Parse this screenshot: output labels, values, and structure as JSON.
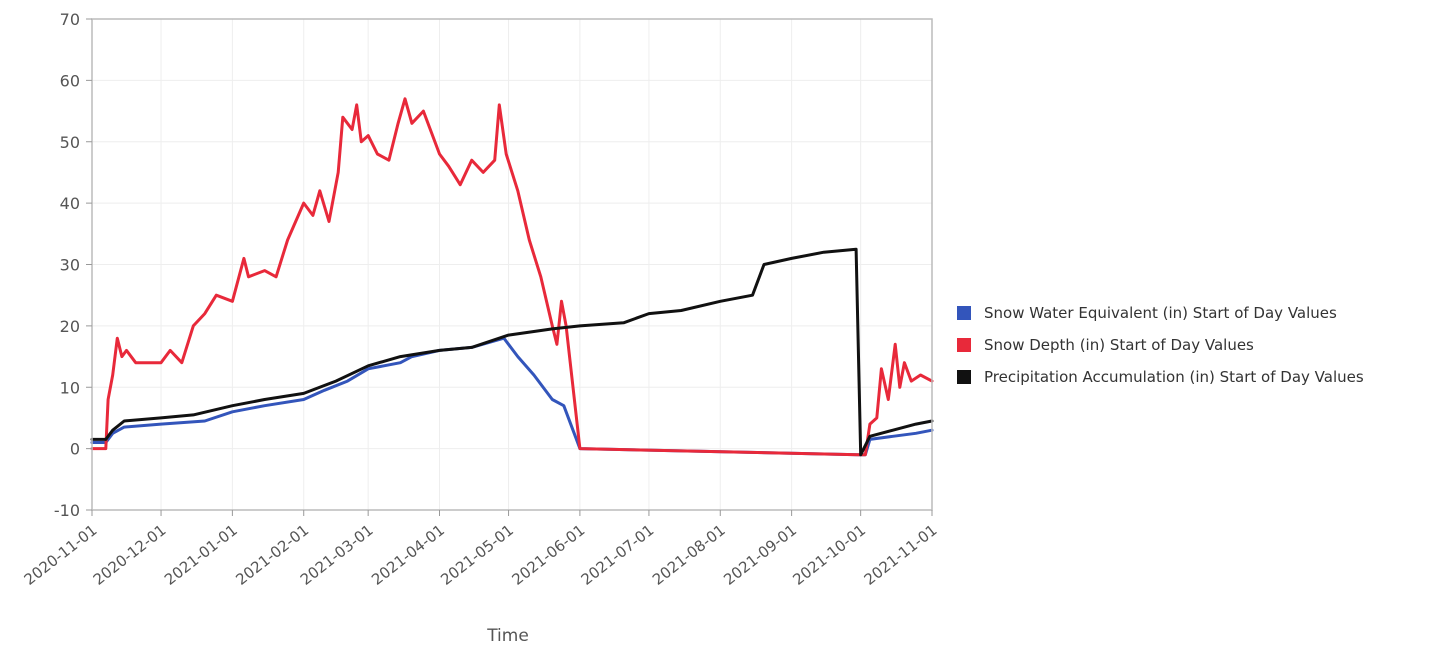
{
  "chart_data": {
    "type": "line",
    "title": "",
    "xlabel": "Time",
    "ylabel": "",
    "ylim": [
      -10,
      70
    ],
    "y_ticks": [
      "70",
      "60",
      "50",
      "40",
      "30",
      "20",
      "10",
      "0",
      "-10"
    ],
    "x_range": [
      "2020-11-01",
      "2021-11-01"
    ],
    "x_ticks": [
      "2020-11-01",
      "2020-12-01",
      "2021-01-01",
      "2021-02-01",
      "2021-03-01",
      "2021-04-01",
      "2021-05-01",
      "2021-06-01",
      "2021-07-01",
      "2021-08-01",
      "2021-09-01",
      "2021-10-01",
      "2021-11-01"
    ],
    "grid": true,
    "legend_position": "right",
    "series": [
      {
        "name": "Snow Water Equivalent (in) Start of Day Values",
        "color": "#3355bb",
        "points": [
          [
            "2020-11-01",
            1
          ],
          [
            "2020-11-07",
            1
          ],
          [
            "2020-11-10",
            2.5
          ],
          [
            "2020-11-15",
            3.5
          ],
          [
            "2020-12-01",
            4
          ],
          [
            "2020-12-20",
            4.5
          ],
          [
            "2021-01-01",
            6
          ],
          [
            "2021-01-15",
            7
          ],
          [
            "2021-02-01",
            8
          ],
          [
            "2021-02-10",
            9.5
          ],
          [
            "2021-02-20",
            11
          ],
          [
            "2021-03-01",
            13
          ],
          [
            "2021-03-15",
            14
          ],
          [
            "2021-03-20",
            15
          ],
          [
            "2021-04-01",
            16
          ],
          [
            "2021-04-15",
            16.5
          ],
          [
            "2021-04-29",
            18
          ],
          [
            "2021-05-05",
            15
          ],
          [
            "2021-05-12",
            12
          ],
          [
            "2021-05-20",
            8
          ],
          [
            "2021-05-25",
            7
          ],
          [
            "2021-05-29",
            3
          ],
          [
            "2021-06-01",
            0
          ],
          [
            "2021-09-30",
            -1
          ],
          [
            "2021-10-03",
            -1
          ],
          [
            "2021-10-05",
            1.5
          ],
          [
            "2021-10-15",
            2
          ],
          [
            "2021-10-25",
            2.5
          ],
          [
            "2021-11-01",
            3
          ]
        ]
      },
      {
        "name": "Snow Depth (in) Start of Day Values",
        "color": "#e8293a",
        "points": [
          [
            "2020-11-01",
            0
          ],
          [
            "2020-11-07",
            0
          ],
          [
            "2020-11-08",
            8
          ],
          [
            "2020-11-10",
            12
          ],
          [
            "2020-11-12",
            18
          ],
          [
            "2020-11-14",
            15
          ],
          [
            "2020-11-16",
            16
          ],
          [
            "2020-11-20",
            14
          ],
          [
            "2020-12-01",
            14
          ],
          [
            "2020-12-05",
            16
          ],
          [
            "2020-12-10",
            14
          ],
          [
            "2020-12-15",
            20
          ],
          [
            "2020-12-20",
            22
          ],
          [
            "2020-12-25",
            25
          ],
          [
            "2021-01-01",
            24
          ],
          [
            "2021-01-06",
            31
          ],
          [
            "2021-01-08",
            28
          ],
          [
            "2021-01-15",
            29
          ],
          [
            "2021-01-20",
            28
          ],
          [
            "2021-01-25",
            34
          ],
          [
            "2021-02-01",
            40
          ],
          [
            "2021-02-05",
            38
          ],
          [
            "2021-02-08",
            42
          ],
          [
            "2021-02-12",
            37
          ],
          [
            "2021-02-16",
            45
          ],
          [
            "2021-02-18",
            54
          ],
          [
            "2021-02-22",
            52
          ],
          [
            "2021-02-24",
            56
          ],
          [
            "2021-02-26",
            50
          ],
          [
            "2021-03-01",
            51
          ],
          [
            "2021-03-05",
            48
          ],
          [
            "2021-03-10",
            47
          ],
          [
            "2021-03-14",
            53
          ],
          [
            "2021-03-17",
            57
          ],
          [
            "2021-03-20",
            53
          ],
          [
            "2021-03-25",
            55
          ],
          [
            "2021-04-01",
            48
          ],
          [
            "2021-04-05",
            46
          ],
          [
            "2021-04-10",
            43
          ],
          [
            "2021-04-15",
            47
          ],
          [
            "2021-04-20",
            45
          ],
          [
            "2021-04-25",
            47
          ],
          [
            "2021-04-27",
            56
          ],
          [
            "2021-04-30",
            48
          ],
          [
            "2021-05-05",
            42
          ],
          [
            "2021-05-10",
            34
          ],
          [
            "2021-05-15",
            28
          ],
          [
            "2021-05-20",
            20
          ],
          [
            "2021-05-22",
            17
          ],
          [
            "2021-05-24",
            24
          ],
          [
            "2021-05-26",
            20
          ],
          [
            "2021-06-01",
            0
          ],
          [
            "2021-09-30",
            -1
          ],
          [
            "2021-10-03",
            -1
          ],
          [
            "2021-10-05",
            4
          ],
          [
            "2021-10-08",
            5
          ],
          [
            "2021-10-10",
            13
          ],
          [
            "2021-10-13",
            8
          ],
          [
            "2021-10-16",
            17
          ],
          [
            "2021-10-18",
            10
          ],
          [
            "2021-10-20",
            14
          ],
          [
            "2021-10-23",
            11
          ],
          [
            "2021-10-27",
            12
          ],
          [
            "2021-11-01",
            11
          ]
        ]
      },
      {
        "name": "Precipitation Accumulation (in) Start of Day Values",
        "color": "#111111",
        "points": [
          [
            "2020-11-01",
            1.5
          ],
          [
            "2020-11-07",
            1.5
          ],
          [
            "2020-11-10",
            3
          ],
          [
            "2020-11-15",
            4.5
          ],
          [
            "2020-12-01",
            5
          ],
          [
            "2020-12-15",
            5.5
          ],
          [
            "2021-01-01",
            7
          ],
          [
            "2021-01-15",
            8
          ],
          [
            "2021-02-01",
            9
          ],
          [
            "2021-02-15",
            11
          ],
          [
            "2021-03-01",
            13.5
          ],
          [
            "2021-03-15",
            15
          ],
          [
            "2021-04-01",
            16
          ],
          [
            "2021-04-15",
            16.5
          ],
          [
            "2021-05-01",
            18.5
          ],
          [
            "2021-05-20",
            19.5
          ],
          [
            "2021-06-01",
            20
          ],
          [
            "2021-06-20",
            20.5
          ],
          [
            "2021-07-01",
            22
          ],
          [
            "2021-07-15",
            22.5
          ],
          [
            "2021-08-01",
            24
          ],
          [
            "2021-08-15",
            25
          ],
          [
            "2021-08-20",
            30
          ],
          [
            "2021-09-01",
            31
          ],
          [
            "2021-09-15",
            32
          ],
          [
            "2021-09-29",
            32.5
          ],
          [
            "2021-10-01",
            -1
          ],
          [
            "2021-10-05",
            2
          ],
          [
            "2021-10-15",
            3
          ],
          [
            "2021-10-25",
            4
          ],
          [
            "2021-11-01",
            4.5
          ]
        ]
      }
    ]
  }
}
